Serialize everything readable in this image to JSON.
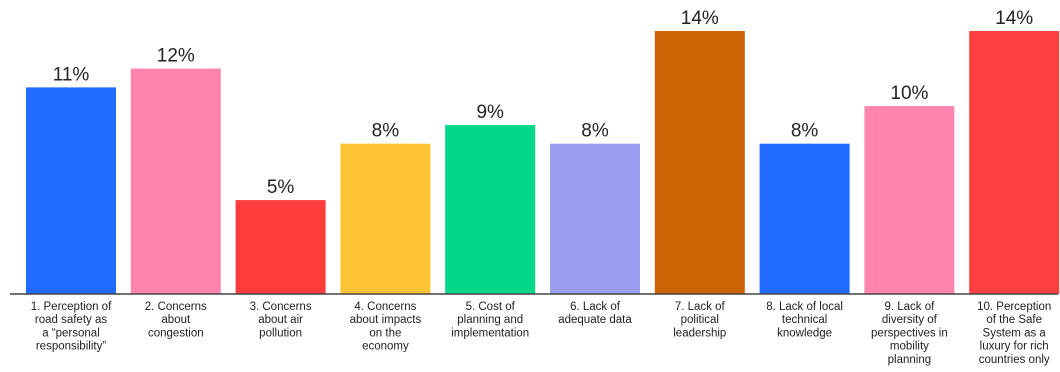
{
  "chart_data": {
    "type": "bar",
    "categories": [
      [
        "1. Perception of",
        "road safety as",
        "a “personal",
        "responsibility”"
      ],
      [
        "2. Concerns",
        "about",
        "congestion"
      ],
      [
        "3. Concerns",
        "about air",
        "pollution"
      ],
      [
        "4. Concerns",
        "about impacts",
        "on the",
        "economy"
      ],
      [
        "5. Cost of",
        "planning and",
        "implementation"
      ],
      [
        "6. Lack of",
        "adequate data"
      ],
      [
        "7. Lack of",
        "political",
        "leadership"
      ],
      [
        "8. Lack of local",
        "technical",
        "knowledge"
      ],
      [
        "9. Lack of",
        "diversity of",
        "perspectives in",
        "mobility",
        "planning"
      ],
      [
        "10. Perception",
        "of the Safe",
        "System as a",
        "luxury for rich",
        "countries only"
      ]
    ],
    "values": [
      11,
      12,
      5,
      8,
      9,
      8,
      14,
      8,
      10,
      14
    ],
    "value_labels": [
      "11%",
      "12%",
      "5%",
      "8%",
      "9%",
      "8%",
      "14%",
      "8%",
      "10%",
      "14%"
    ],
    "colors": [
      "#1F6BFF",
      "#FF85AE",
      "#FF3B3B",
      "#FFC436",
      "#05D78A",
      "#9B9DF0",
      "#CC6304",
      "#1F6BFF",
      "#FF85AE",
      "#FF4040"
    ],
    "ylim": [
      0,
      14
    ],
    "grid": false,
    "legend": "none",
    "title": "",
    "xlabel": "",
    "ylabel": ""
  }
}
